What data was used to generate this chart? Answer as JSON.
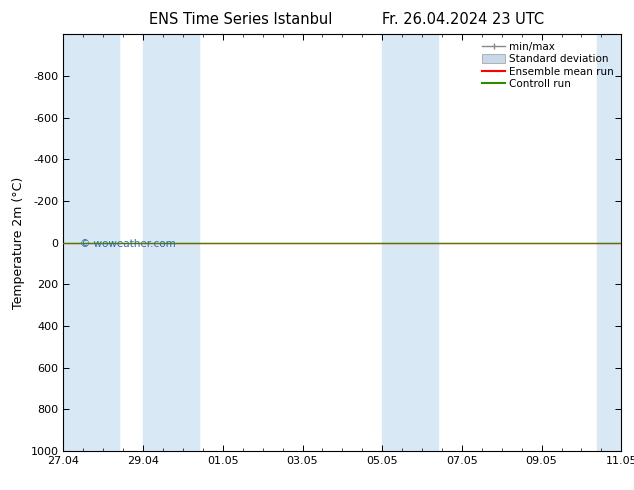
{
  "title_left": "ENS Time Series Istanbul",
  "title_right": "Fr. 26.04.2024 23 UTC",
  "ylabel": "Temperature 2m (°C)",
  "watermark": "© woweather.com",
  "ylim_top": -1000,
  "ylim_bottom": 1000,
  "yticks": [
    -800,
    -600,
    -400,
    -200,
    0,
    200,
    400,
    600,
    800,
    1000
  ],
  "xtick_labels": [
    "27.04",
    "29.04",
    "01.05",
    "03.05",
    "05.05",
    "07.05",
    "09.05",
    "11.05"
  ],
  "xtick_positions": [
    0,
    2,
    4,
    6,
    8,
    10,
    12,
    14
  ],
  "xlim": [
    0,
    14
  ],
  "bg_color": "#ffffff",
  "plot_bg_color": "#ffffff",
  "shaded_bands": [
    [
      0,
      1.4
    ],
    [
      2.0,
      3.4
    ],
    [
      8.0,
      9.4
    ],
    [
      13.4,
      14.0
    ]
  ],
  "shaded_color": "#d8e8f5",
  "line_y": 0,
  "line_color_control": "#2d8c00",
  "line_color_ensemble": "#ff0000",
  "legend_items": [
    {
      "label": "min/max",
      "color": "#aabbcc",
      "type": "errorbar"
    },
    {
      "label": "Standard deviation",
      "color": "#c8d8e8",
      "type": "fill"
    },
    {
      "label": "Ensemble mean run",
      "color": "#ff0000",
      "type": "line"
    },
    {
      "label": "Controll run",
      "color": "#2d8c00",
      "type": "line"
    }
  ],
  "title_fontsize": 10.5,
  "axis_label_fontsize": 9,
  "tick_fontsize": 8,
  "legend_fontsize": 7.5
}
